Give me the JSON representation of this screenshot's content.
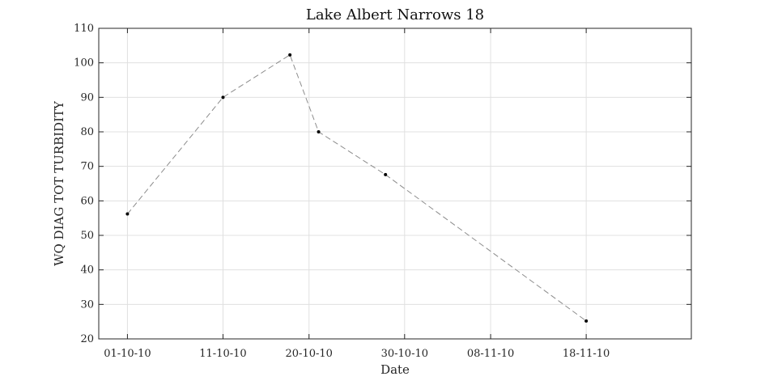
{
  "chart_data": {
    "type": "line",
    "title": "Lake Albert Narrows 18",
    "xlabel": "Date",
    "ylabel": "WQ DIAG TOT TURBIDITY",
    "ylim": [
      20,
      110
    ],
    "xlim": [
      "2010-09-28",
      "2010-11-29"
    ],
    "y_ticks": [
      20,
      30,
      40,
      50,
      60,
      70,
      80,
      90,
      100,
      110
    ],
    "x_ticks": [
      {
        "date": "2010-10-01",
        "label": "01-10-10"
      },
      {
        "date": "2010-10-11",
        "label": "11-10-10"
      },
      {
        "date": "2010-10-20",
        "label": "20-10-10"
      },
      {
        "date": "2010-10-30",
        "label": "30-10-10"
      },
      {
        "date": "2010-11-08",
        "label": "08-11-10"
      },
      {
        "date": "2010-11-18",
        "label": "18-11-10"
      }
    ],
    "grid": true,
    "line_style": "dashed",
    "line_color": "#8c8c8c",
    "marker_color": "#000000",
    "series": [
      {
        "points": [
          {
            "x": "2010-10-01",
            "y": 56.2
          },
          {
            "x": "2010-10-11",
            "y": 90.0
          },
          {
            "x": "2010-10-18",
            "y": 102.3
          },
          {
            "x": "2010-10-21",
            "y": 80.0
          },
          {
            "x": "2010-10-28",
            "y": 67.6
          },
          {
            "x": "2010-11-18",
            "y": 25.2
          }
        ]
      }
    ]
  }
}
